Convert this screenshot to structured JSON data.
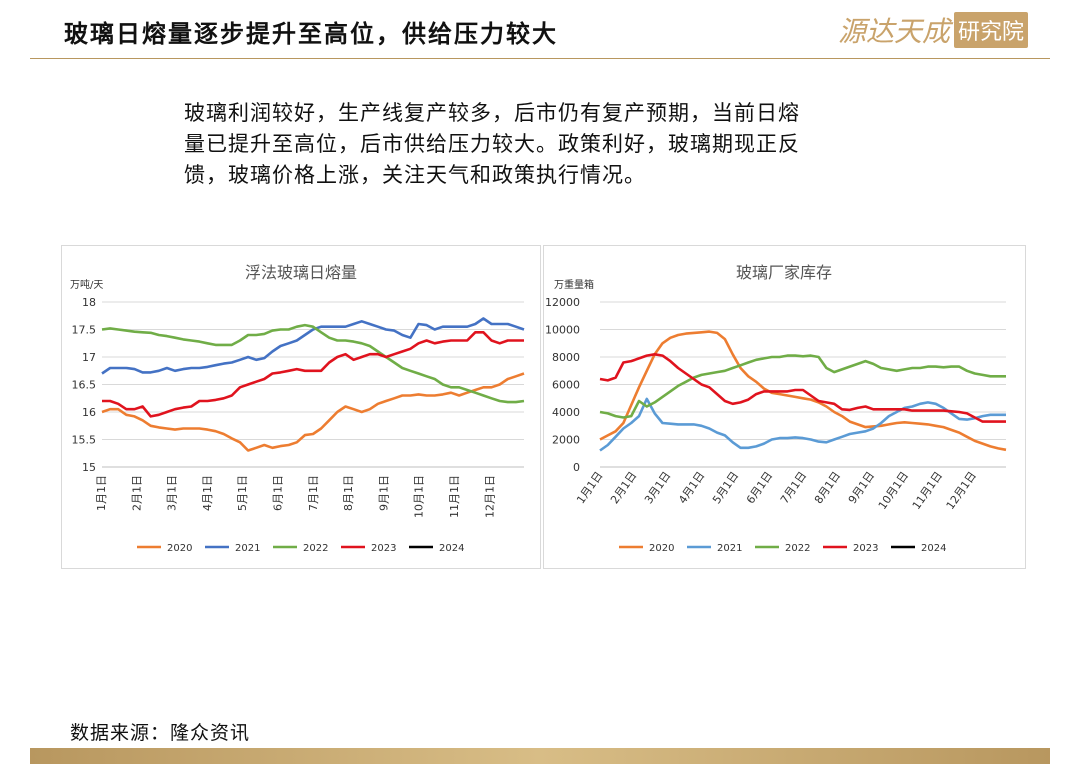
{
  "header": {
    "title": "玻璃日熔量逐步提升至高位，供给压力较大",
    "logo_text_a": "源达天成",
    "logo_text_b": "研究院"
  },
  "body": {
    "paragraph_lines": [
      "玻璃利润较好，生产线复产较多，后市仍有复产预期，当前日熔",
      "量已提升至高位，后市供给压力较大。政策利好，玻璃期现正反",
      "馈，玻璃价格上涨，关注天气和政策执行情况。"
    ]
  },
  "footer": {
    "source": "数据来源：隆众资讯"
  },
  "chart_data": [
    {
      "type": "line",
      "title": "浮法玻璃日熔量",
      "ylabel": "万吨/天",
      "xlabel": "",
      "ylim": [
        15,
        18
      ],
      "yticks": [
        "18",
        "17.5",
        "17",
        "16.5",
        "16",
        "15.5",
        "15"
      ],
      "xticks": [
        "1月1日",
        "2月1日",
        "3月1日",
        "4月1日",
        "5月1日",
        "6月1日",
        "7月1日",
        "8月1日",
        "9月1日",
        "10月1日",
        "11月1日",
        "12月1日"
      ],
      "xrange": [
        1,
        53
      ],
      "grid": true,
      "legend": "bottom",
      "series": [
        {
          "name": "2020",
          "color": "#ed7d31",
          "x": [
            1,
            2,
            3,
            4,
            5,
            6,
            7,
            8,
            9,
            10,
            11,
            12,
            13,
            14,
            15,
            16,
            17,
            18,
            19,
            20,
            21,
            22,
            23,
            24,
            25,
            26,
            27,
            28,
            29,
            30,
            31,
            32,
            33,
            34,
            35,
            36,
            37,
            38,
            39,
            40,
            41,
            42,
            43,
            44,
            45,
            46,
            47,
            48,
            49,
            50,
            51,
            52,
            53
          ],
          "values": [
            16.0,
            16.05,
            16.05,
            15.95,
            15.92,
            15.85,
            15.75,
            15.72,
            15.7,
            15.68,
            15.7,
            15.7,
            15.7,
            15.68,
            15.65,
            15.6,
            15.52,
            15.45,
            15.3,
            15.35,
            15.4,
            15.35,
            15.38,
            15.4,
            15.45,
            15.58,
            15.6,
            15.7,
            15.85,
            16.0,
            16.1,
            16.05,
            16.0,
            16.05,
            16.15,
            16.2,
            16.25,
            16.3,
            16.3,
            16.32,
            16.3,
            16.3,
            16.32,
            16.35,
            16.3,
            16.35,
            16.4,
            16.45,
            16.45,
            16.5,
            16.6,
            16.65,
            16.7
          ]
        },
        {
          "name": "2021",
          "color": "#4472c4",
          "x": [
            1,
            2,
            3,
            4,
            5,
            6,
            7,
            8,
            9,
            10,
            11,
            12,
            13,
            14,
            15,
            16,
            17,
            18,
            19,
            20,
            21,
            22,
            23,
            24,
            25,
            26,
            27,
            28,
            29,
            30,
            31,
            32,
            33,
            34,
            35,
            36,
            37,
            38,
            39,
            40,
            41,
            42,
            43,
            44,
            45,
            46,
            47,
            48,
            49,
            50,
            51,
            52,
            53
          ],
          "values": [
            16.7,
            16.8,
            16.8,
            16.8,
            16.78,
            16.72,
            16.72,
            16.75,
            16.8,
            16.75,
            16.78,
            16.8,
            16.8,
            16.82,
            16.85,
            16.88,
            16.9,
            16.95,
            17.0,
            16.95,
            16.98,
            17.1,
            17.2,
            17.25,
            17.3,
            17.4,
            17.5,
            17.55,
            17.55,
            17.55,
            17.55,
            17.6,
            17.65,
            17.6,
            17.55,
            17.5,
            17.48,
            17.4,
            17.35,
            17.6,
            17.58,
            17.5,
            17.55,
            17.55,
            17.55,
            17.55,
            17.6,
            17.7,
            17.6,
            17.6,
            17.6,
            17.55,
            17.5
          ]
        },
        {
          "name": "2022",
          "color": "#70ad47",
          "x": [
            1,
            2,
            3,
            4,
            5,
            6,
            7,
            8,
            9,
            10,
            11,
            12,
            13,
            14,
            15,
            16,
            17,
            18,
            19,
            20,
            21,
            22,
            23,
            24,
            25,
            26,
            27,
            28,
            29,
            30,
            31,
            32,
            33,
            34,
            35,
            36,
            37,
            38,
            39,
            40,
            41,
            42,
            43,
            44,
            45,
            46,
            47,
            48,
            49,
            50,
            51,
            52,
            53
          ],
          "values": [
            17.5,
            17.52,
            17.5,
            17.48,
            17.46,
            17.45,
            17.44,
            17.4,
            17.38,
            17.35,
            17.32,
            17.3,
            17.28,
            17.25,
            17.22,
            17.22,
            17.22,
            17.3,
            17.4,
            17.4,
            17.42,
            17.48,
            17.5,
            17.5,
            17.55,
            17.58,
            17.55,
            17.45,
            17.35,
            17.3,
            17.3,
            17.28,
            17.25,
            17.2,
            17.1,
            17.0,
            16.9,
            16.8,
            16.75,
            16.7,
            16.65,
            16.6,
            16.5,
            16.45,
            16.45,
            16.4,
            16.35,
            16.3,
            16.25,
            16.2,
            16.18,
            16.18,
            16.2
          ]
        },
        {
          "name": "2023",
          "color": "#e0131e",
          "x": [
            1,
            2,
            3,
            4,
            5,
            6,
            7,
            8,
            9,
            10,
            11,
            12,
            13,
            14,
            15,
            16,
            17,
            18,
            19,
            20,
            21,
            22,
            23,
            24,
            25,
            26,
            27,
            28,
            29,
            30,
            31,
            32,
            33,
            34,
            35,
            36,
            37,
            38,
            39,
            40,
            41,
            42,
            43,
            44,
            45,
            46,
            47,
            48,
            49,
            50,
            51,
            52,
            53
          ],
          "values": [
            16.2,
            16.2,
            16.15,
            16.05,
            16.05,
            16.1,
            15.92,
            15.95,
            16.0,
            16.05,
            16.08,
            16.1,
            16.2,
            16.2,
            16.22,
            16.25,
            16.3,
            16.45,
            16.5,
            16.55,
            16.6,
            16.7,
            16.72,
            16.75,
            16.78,
            16.75,
            16.75,
            16.75,
            16.9,
            17.0,
            17.05,
            16.95,
            17.0,
            17.05,
            17.05,
            17.0,
            17.05,
            17.1,
            17.15,
            17.25,
            17.3,
            17.25,
            17.28,
            17.3,
            17.3,
            17.3,
            17.45,
            17.45,
            17.3,
            17.25,
            17.3,
            17.3,
            17.3
          ]
        },
        {
          "name": "2024",
          "color": "#000000",
          "x": [],
          "values": []
        }
      ]
    },
    {
      "type": "line",
      "title": "玻璃厂家库存",
      "ylabel": "万重量箱",
      "xlabel": "",
      "ylim": [
        0,
        12000
      ],
      "yticks": [
        "12000",
        "10000",
        "8000",
        "6000",
        "4000",
        "2000",
        "0"
      ],
      "xticks": [
        "1月1日",
        "2月1日",
        "3月1日",
        "4月1日",
        "5月1日",
        "6月1日",
        "7月1日",
        "8月1日",
        "9月1日",
        "10月1日",
        "11月1日",
        "12月1日"
      ],
      "xrange": [
        1,
        53
      ],
      "grid": true,
      "legend": "bottom",
      "series": [
        {
          "name": "2020",
          "color": "#ed7d31",
          "x": [
            1,
            2,
            3,
            4,
            5,
            6,
            7,
            8,
            9,
            10,
            11,
            12,
            13,
            14,
            15,
            16,
            17,
            18,
            19,
            20,
            21,
            22,
            23,
            24,
            25,
            26,
            27,
            28,
            29,
            30,
            31,
            32,
            33,
            34,
            35,
            36,
            37,
            38,
            39,
            40,
            41,
            42,
            43,
            44,
            45,
            46,
            47,
            48,
            49,
            50,
            51,
            52,
            53
          ],
          "values": [
            2000,
            2300,
            2600,
            3200,
            4500,
            5800,
            7000,
            8200,
            9000,
            9400,
            9600,
            9700,
            9750,
            9800,
            9850,
            9750,
            9300,
            8200,
            7200,
            6600,
            6200,
            5700,
            5400,
            5300,
            5200,
            5100,
            5000,
            4900,
            4700,
            4400,
            4000,
            3700,
            3300,
            3100,
            2900,
            2950,
            3000,
            3100,
            3200,
            3250,
            3200,
            3150,
            3100,
            3000,
            2900,
            2700,
            2500,
            2200,
            1900,
            1700,
            1500,
            1350,
            1250
          ]
        },
        {
          "name": "2021",
          "color": "#5b9bd5",
          "x": [
            1,
            2,
            3,
            4,
            5,
            6,
            7,
            8,
            9,
            10,
            11,
            12,
            13,
            14,
            15,
            16,
            17,
            18,
            19,
            20,
            21,
            22,
            23,
            24,
            25,
            26,
            27,
            28,
            29,
            30,
            31,
            32,
            33,
            34,
            35,
            36,
            37,
            38,
            39,
            40,
            41,
            42,
            43,
            44,
            45,
            46,
            47,
            48,
            49,
            50,
            51,
            52,
            53
          ],
          "values": [
            1200,
            1600,
            2200,
            2800,
            3200,
            3700,
            4950,
            3900,
            3200,
            3150,
            3100,
            3100,
            3100,
            3000,
            2800,
            2500,
            2300,
            1800,
            1400,
            1400,
            1500,
            1700,
            2000,
            2100,
            2100,
            2150,
            2100,
            2000,
            1850,
            1800,
            2000,
            2200,
            2400,
            2500,
            2600,
            2800,
            3200,
            3700,
            4000,
            4300,
            4400,
            4600,
            4700,
            4600,
            4300,
            3900,
            3500,
            3450,
            3550,
            3700,
            3800,
            3800,
            3800
          ]
        },
        {
          "name": "2022",
          "color": "#70ad47",
          "x": [
            1,
            2,
            3,
            4,
            5,
            6,
            7,
            8,
            9,
            10,
            11,
            12,
            13,
            14,
            15,
            16,
            17,
            18,
            19,
            20,
            21,
            22,
            23,
            24,
            25,
            26,
            27,
            28,
            29,
            30,
            31,
            32,
            33,
            34,
            35,
            36,
            37,
            38,
            39,
            40,
            41,
            42,
            43,
            44,
            45,
            46,
            47,
            48,
            49,
            50,
            51,
            52,
            53
          ],
          "values": [
            4000,
            3900,
            3700,
            3600,
            3700,
            4800,
            4400,
            4700,
            5100,
            5500,
            5900,
            6200,
            6500,
            6700,
            6800,
            6900,
            7000,
            7200,
            7400,
            7600,
            7800,
            7900,
            8000,
            8000,
            8100,
            8100,
            8050,
            8100,
            8000,
            7200,
            6900,
            7100,
            7300,
            7500,
            7700,
            7500,
            7200,
            7100,
            7000,
            7100,
            7200,
            7200,
            7300,
            7300,
            7250,
            7300,
            7300,
            7000,
            6800,
            6700,
            6600,
            6600,
            6600
          ]
        },
        {
          "name": "2023",
          "color": "#e0131e",
          "x": [
            1,
            2,
            3,
            4,
            5,
            6,
            7,
            8,
            9,
            10,
            11,
            12,
            13,
            14,
            15,
            16,
            17,
            18,
            19,
            20,
            21,
            22,
            23,
            24,
            25,
            26,
            27,
            28,
            29,
            30,
            31,
            32,
            33,
            34,
            35,
            36,
            37,
            38,
            39,
            40,
            41,
            42,
            43,
            44,
            45,
            46,
            47,
            48,
            49,
            50,
            51,
            52,
            53
          ],
          "values": [
            6400,
            6300,
            6500,
            7600,
            7700,
            7900,
            8100,
            8200,
            8100,
            7700,
            7200,
            6800,
            6400,
            6000,
            5800,
            5300,
            4800,
            4600,
            4700,
            4900,
            5300,
            5500,
            5500,
            5500,
            5500,
            5600,
            5600,
            5200,
            4800,
            4700,
            4600,
            4200,
            4150,
            4300,
            4400,
            4200,
            4200,
            4200,
            4200,
            4200,
            4100,
            4100,
            4100,
            4100,
            4100,
            4050,
            4000,
            3900,
            3600,
            3300,
            3300,
            3300,
            3300
          ]
        },
        {
          "name": "2024",
          "color": "#000000",
          "x": [],
          "values": []
        }
      ]
    }
  ]
}
